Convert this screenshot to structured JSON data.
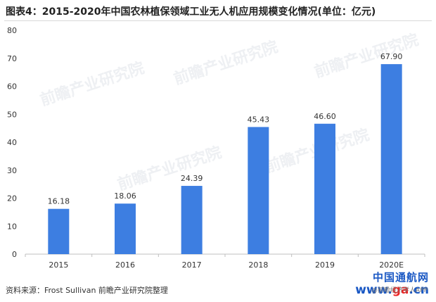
{
  "title": "图表4：2015-2020年中国农林植保领域工业无人机应用规模变化情况(单位：亿元)",
  "source": "资料来源：Frost Sullivan 前瞻产业研究院整理",
  "watermark": {
    "brand": "前瞻产业研究院",
    "site_name": "中国通航网",
    "site_url_prefix": "www.",
    "site_url_mid": "ga",
    "site_url_suffix": ".cn",
    "app_label": "@前瞻经济学人APP"
  },
  "colors": {
    "bar": "#3d7ee1",
    "axis": "#bfbfbf",
    "text": "#333333"
  },
  "chart_data": {
    "type": "bar",
    "categories": [
      "2015",
      "2016",
      "2017",
      "2018",
      "2019",
      "2020E"
    ],
    "values": [
      16.18,
      18.06,
      24.39,
      45.43,
      46.6,
      67.9
    ],
    "data_labels": [
      "16.18",
      "18.06",
      "24.39",
      "45.43",
      "46.60",
      "67.90"
    ],
    "yticks": [
      0,
      10,
      20,
      30,
      40,
      50,
      60,
      70,
      80
    ],
    "ylim": [
      0,
      80
    ],
    "grid": false,
    "legend": "none"
  }
}
